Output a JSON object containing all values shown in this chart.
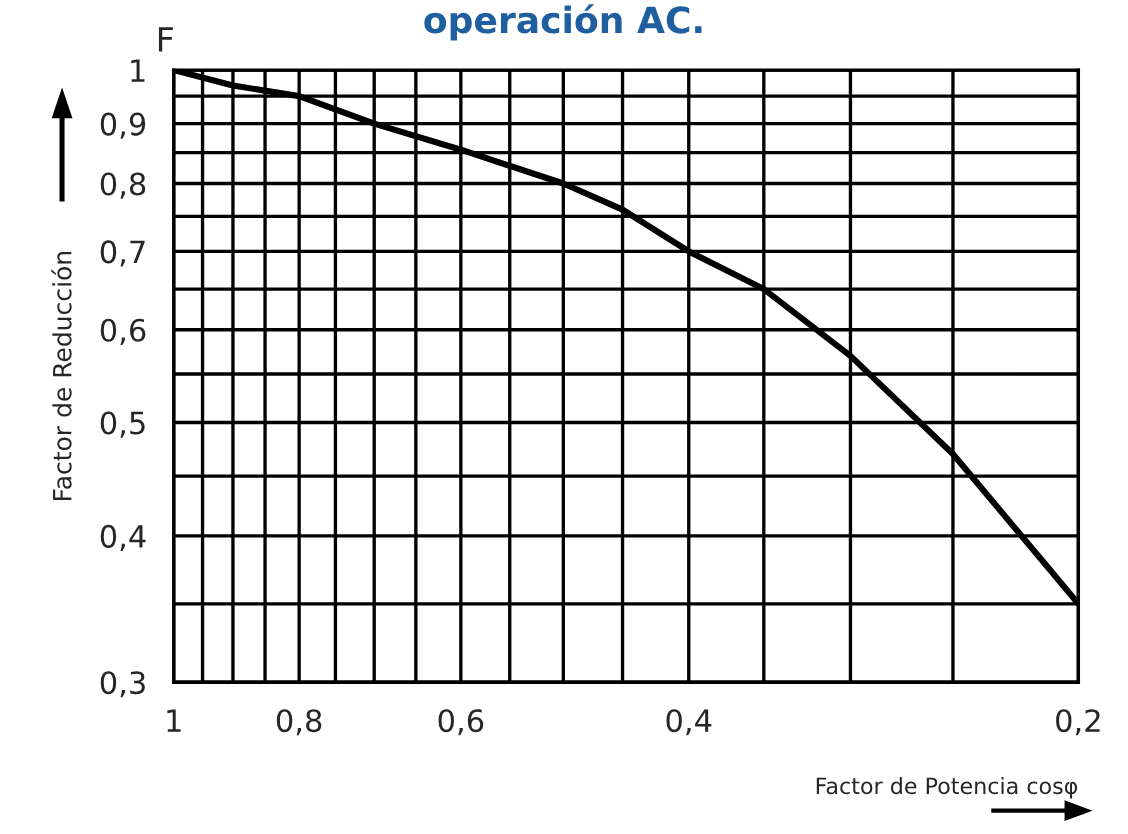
{
  "chart_data": {
    "type": "line",
    "title": "operación AC.",
    "xlabel": "Factor de Potencia cosφ",
    "ylabel": "Factor de Reducción",
    "annotations": [
      "F"
    ],
    "x": [
      1,
      0.9,
      0.8,
      0.7,
      0.6,
      0.5,
      0.45,
      0.4,
      0.35,
      0.3,
      0.25,
      0.2
    ],
    "series": [
      {
        "color": "#000000",
        "values": [
          1,
          0.97,
          0.95,
          0.9,
          0.855,
          0.8,
          0.76,
          0.7,
          0.65,
          0.57,
          0.47,
          0.35
        ]
      }
    ],
    "log": "xy",
    "xlim": [
      1,
      0.2
    ],
    "ylim": [
      0.3,
      1
    ],
    "xticks": [
      1,
      {
        "value": 0.95,
        "label": null
      },
      {
        "value": 0.9,
        "label": null
      },
      {
        "value": 0.85,
        "label": null
      },
      {
        "value": 0.8,
        "label": "0,8"
      },
      {
        "value": 0.75,
        "label": null
      },
      {
        "value": 0.7,
        "label": null
      },
      {
        "value": 0.65,
        "label": null
      },
      {
        "value": 0.6,
        "label": "0,6"
      },
      {
        "value": 0.55,
        "label": null
      },
      {
        "value": 0.5,
        "label": null
      },
      {
        "value": 0.45,
        "label": null
      },
      {
        "value": 0.4,
        "label": "0,4"
      },
      {
        "value": 0.35,
        "label": null
      },
      {
        "value": 0.3,
        "label": null
      },
      {
        "value": 0.25,
        "label": null
      },
      {
        "value": 0.2,
        "label": "0,2"
      }
    ],
    "yticks": [
      1,
      {
        "value": 0.95,
        "label": null
      },
      {
        "value": 0.9,
        "label": "0,9"
      },
      {
        "value": 0.85,
        "label": null
      },
      {
        "value": 0.8,
        "label": "0,8"
      },
      {
        "value": 0.75,
        "label": null
      },
      {
        "value": 0.7,
        "label": "0,7"
      },
      {
        "value": 0.65,
        "label": null
      },
      {
        "value": 0.6,
        "label": "0,6"
      },
      {
        "value": 0.55,
        "label": null
      },
      {
        "value": 0.5,
        "label": "0,5"
      },
      {
        "value": 0.45,
        "label": null
      },
      {
        "value": 0.4,
        "label": "0,4"
      },
      {
        "value": 0.35,
        "label": null
      },
      {
        "value": 0.3,
        "label": "0,3"
      }
    ],
    "grid": true,
    "line_style": "solid",
    "marker": "none"
  }
}
